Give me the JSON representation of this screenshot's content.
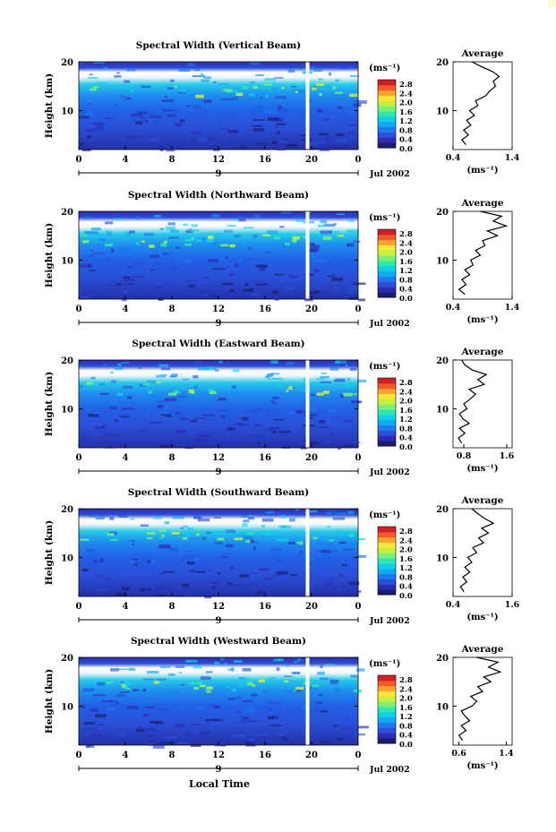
{
  "figure": {
    "xlabel": "Local Time",
    "date_label": "Jul 2002",
    "day_label": "9",
    "avg_title": "Average",
    "unit_label": "(ms⁻¹)",
    "colorbar_unit": "(ms⁻¹)",
    "colorbar_ticks": [
      "2.8",
      "2.4",
      "2.0",
      "1.6",
      "1.2",
      "0.8",
      "0.4",
      "0.0"
    ],
    "colors": {
      "scale": [
        "#1a1e6e",
        "#2e2bb0",
        "#2a4fd8",
        "#1f78f0",
        "#13a8f2",
        "#10d0e8",
        "#2ee6b0",
        "#7af07a",
        "#c6f040",
        "#f6e83a",
        "#f9a52e",
        "#f25a2a",
        "#d11f26",
        "#f2f2f2"
      ],
      "line": "#000000"
    }
  },
  "chart_data": [
    {
      "type": "heatmap",
      "title": "Spectral Width (Vertical Beam)",
      "ylabel": "Height (km)",
      "xticks": [
        "0",
        "4",
        "8",
        "12",
        "16",
        "20",
        "0"
      ],
      "yticks": [
        "20",
        "10"
      ],
      "xlim": [
        0,
        24
      ],
      "ylim": [
        2,
        20
      ],
      "avg": {
        "xticks": [
          "0.4",
          "1.4"
        ],
        "xlim": [
          0.4,
          1.4
        ],
        "yticks": [
          "20",
          "10"
        ],
        "profile": [
          [
            0.62,
            3
          ],
          [
            0.55,
            4
          ],
          [
            0.66,
            5
          ],
          [
            0.58,
            6
          ],
          [
            0.7,
            7
          ],
          [
            0.63,
            8
          ],
          [
            0.76,
            9
          ],
          [
            0.68,
            10
          ],
          [
            0.82,
            11
          ],
          [
            0.78,
            12
          ],
          [
            0.95,
            13
          ],
          [
            1.02,
            14
          ],
          [
            1.12,
            15
          ],
          [
            1.08,
            16
          ],
          [
            1.18,
            17
          ],
          [
            1.07,
            18
          ],
          [
            0.88,
            19
          ],
          [
            0.72,
            20
          ]
        ]
      }
    },
    {
      "type": "heatmap",
      "title": "Spectral Width (Northward Beam)",
      "ylabel": "Height (km)",
      "xticks": [
        "0",
        "4",
        "8",
        "12",
        "16",
        "20",
        "0"
      ],
      "yticks": [
        "20",
        "10"
      ],
      "xlim": [
        0,
        24
      ],
      "ylim": [
        2,
        20
      ],
      "avg": {
        "xticks": [
          "0.4",
          "1.4"
        ],
        "xlim": [
          0.4,
          1.4
        ],
        "yticks": [
          "20",
          "10"
        ],
        "profile": [
          [
            0.6,
            3
          ],
          [
            0.5,
            4
          ],
          [
            0.62,
            5
          ],
          [
            0.55,
            6
          ],
          [
            0.68,
            7
          ],
          [
            0.6,
            8
          ],
          [
            0.74,
            9
          ],
          [
            0.7,
            10
          ],
          [
            0.86,
            11
          ],
          [
            0.78,
            12
          ],
          [
            0.94,
            13
          ],
          [
            0.9,
            14
          ],
          [
            1.15,
            15
          ],
          [
            0.98,
            16
          ],
          [
            1.3,
            17
          ],
          [
            1.08,
            18
          ],
          [
            1.22,
            19
          ],
          [
            0.86,
            20
          ]
        ]
      }
    },
    {
      "type": "heatmap",
      "title": "Spectral Width (Eastward Beam)",
      "ylabel": "Height (km)",
      "xticks": [
        "0",
        "4",
        "8",
        "12",
        "16",
        "20",
        "0"
      ],
      "yticks": [
        "20",
        "10"
      ],
      "xlim": [
        0,
        24
      ],
      "ylim": [
        2,
        20
      ],
      "avg": {
        "xticks": [
          "0.8",
          "1.6"
        ],
        "xlim": [
          0.6,
          1.7
        ],
        "yticks": [
          "20",
          "10"
        ],
        "profile": [
          [
            0.76,
            3
          ],
          [
            0.7,
            4
          ],
          [
            0.82,
            5
          ],
          [
            0.72,
            6
          ],
          [
            0.9,
            7
          ],
          [
            0.78,
            8
          ],
          [
            0.72,
            9
          ],
          [
            0.86,
            10
          ],
          [
            0.8,
            11
          ],
          [
            0.92,
            12
          ],
          [
            1.02,
            13
          ],
          [
            0.9,
            14
          ],
          [
            1.18,
            15
          ],
          [
            1.06,
            16
          ],
          [
            1.22,
            17
          ],
          [
            0.95,
            18
          ],
          [
            0.82,
            19
          ],
          [
            0.76,
            20
          ]
        ]
      }
    },
    {
      "type": "heatmap",
      "title": "Spectral Width (Southward Beam)",
      "ylabel": "Height (km)",
      "xticks": [
        "0",
        "4",
        "8",
        "12",
        "16",
        "20",
        "0"
      ],
      "yticks": [
        "20",
        "10"
      ],
      "xlim": [
        0,
        24
      ],
      "ylim": [
        2,
        20
      ],
      "avg": {
        "xticks": [
          "0.4",
          "1.6"
        ],
        "xlim": [
          0.4,
          1.6
        ],
        "yticks": [
          "20",
          "10"
        ],
        "profile": [
          [
            0.62,
            3
          ],
          [
            0.55,
            4
          ],
          [
            0.68,
            5
          ],
          [
            0.6,
            6
          ],
          [
            0.74,
            7
          ],
          [
            0.64,
            8
          ],
          [
            0.78,
            9
          ],
          [
            0.7,
            10
          ],
          [
            0.88,
            11
          ],
          [
            0.8,
            12
          ],
          [
            1.02,
            13
          ],
          [
            0.92,
            14
          ],
          [
            1.12,
            15
          ],
          [
            0.98,
            16
          ],
          [
            1.22,
            17
          ],
          [
            1.04,
            18
          ],
          [
            0.9,
            19
          ],
          [
            0.78,
            20
          ]
        ]
      }
    },
    {
      "type": "heatmap",
      "title": "Spectral Width (Westward Beam)",
      "ylabel": "Height (km)",
      "xticks": [
        "0",
        "4",
        "8",
        "12",
        "16",
        "20",
        "0"
      ],
      "yticks": [
        "20",
        "10"
      ],
      "xlim": [
        0,
        24
      ],
      "ylim": [
        2,
        20
      ],
      "avg": {
        "xticks": [
          "0.6",
          "1.4"
        ],
        "xlim": [
          0.5,
          1.5
        ],
        "yticks": [
          "20",
          "10"
        ],
        "profile": [
          [
            0.66,
            3
          ],
          [
            0.6,
            4
          ],
          [
            0.72,
            5
          ],
          [
            0.64,
            6
          ],
          [
            0.78,
            7
          ],
          [
            0.7,
            8
          ],
          [
            0.64,
            9
          ],
          [
            0.82,
            10
          ],
          [
            0.9,
            11
          ],
          [
            0.8,
            12
          ],
          [
            1.0,
            13
          ],
          [
            0.92,
            14
          ],
          [
            1.14,
            15
          ],
          [
            1.02,
            16
          ],
          [
            1.3,
            17
          ],
          [
            1.1,
            18
          ],
          [
            1.26,
            19
          ],
          [
            0.9,
            20
          ]
        ]
      }
    }
  ]
}
